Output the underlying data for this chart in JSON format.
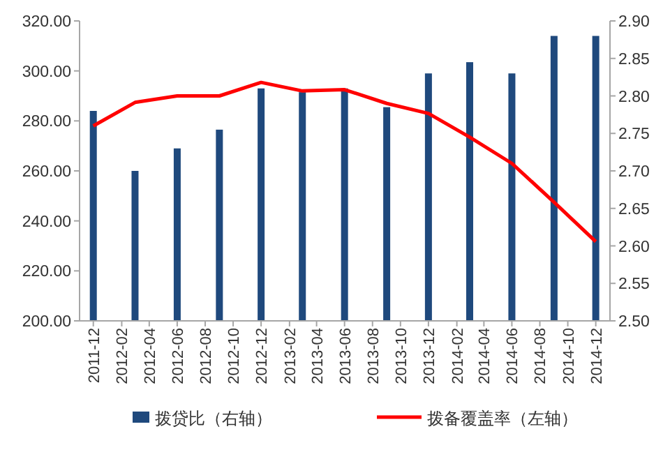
{
  "chart_data": {
    "type": "bar",
    "x": [
      "2011-12",
      "2012-03",
      "2012-06",
      "2012-09",
      "2012-12",
      "2013-03",
      "2013-06",
      "2013-09",
      "2013-12",
      "2014-03",
      "2014-06",
      "2014-09",
      "2014-12"
    ],
    "series": [
      {
        "name": "拨贷比（右轴）",
        "axis": "y2",
        "color": "#1f497d",
        "values": [
          2.78,
          2.7,
          2.73,
          2.755,
          2.81,
          2.805,
          2.81,
          2.785,
          2.83,
          2.845,
          2.83,
          2.88,
          2.88
        ]
      },
      {
        "name": "拨备覆盖率（左轴）",
        "type": "line",
        "color": "#ff0000",
        "values": [
          278,
          287.4,
          290,
          290,
          295.4,
          292,
          292.5,
          287,
          283,
          273.5,
          263,
          247.5,
          231.7
        ]
      }
    ],
    "xlim": [
      "2011-11",
      "2015-01"
    ],
    "xticks": [
      "2011-12",
      "2012-02",
      "2012-04",
      "2012-06",
      "2012-08",
      "2012-10",
      "2012-12",
      "2013-02",
      "2013-04",
      "2013-06",
      "2013-08",
      "2013-10",
      "2013-12",
      "2014-02",
      "2014-04",
      "2014-06",
      "2014-08",
      "2014-10",
      "2014-12"
    ],
    "ylim": [
      200,
      320
    ],
    "yticks": [
      {
        "value": 200,
        "label": "200.00"
      },
      {
        "value": 220,
        "label": "220.00"
      },
      {
        "value": 240,
        "label": "240.00"
      },
      {
        "value": 260,
        "label": "260.00"
      },
      {
        "value": 280,
        "label": "280.00"
      },
      {
        "value": 300,
        "label": "300.00"
      },
      {
        "value": 320,
        "label": "320.00"
      }
    ],
    "y2lim": [
      2.5,
      2.9
    ],
    "y2ticks": [
      {
        "value": 2.5,
        "label": "2.50"
      },
      {
        "value": 2.55,
        "label": "2.55"
      },
      {
        "value": 2.6,
        "label": "2.60"
      },
      {
        "value": 2.65,
        "label": "2.65"
      },
      {
        "value": 2.7,
        "label": "2.70"
      },
      {
        "value": 2.75,
        "label": "2.75"
      },
      {
        "value": 2.8,
        "label": "2.80"
      },
      {
        "value": 2.85,
        "label": "2.85"
      },
      {
        "value": 2.9,
        "label": "2.90"
      }
    ],
    "legend": "bottom",
    "marker": "none",
    "line_style": "solid"
  }
}
